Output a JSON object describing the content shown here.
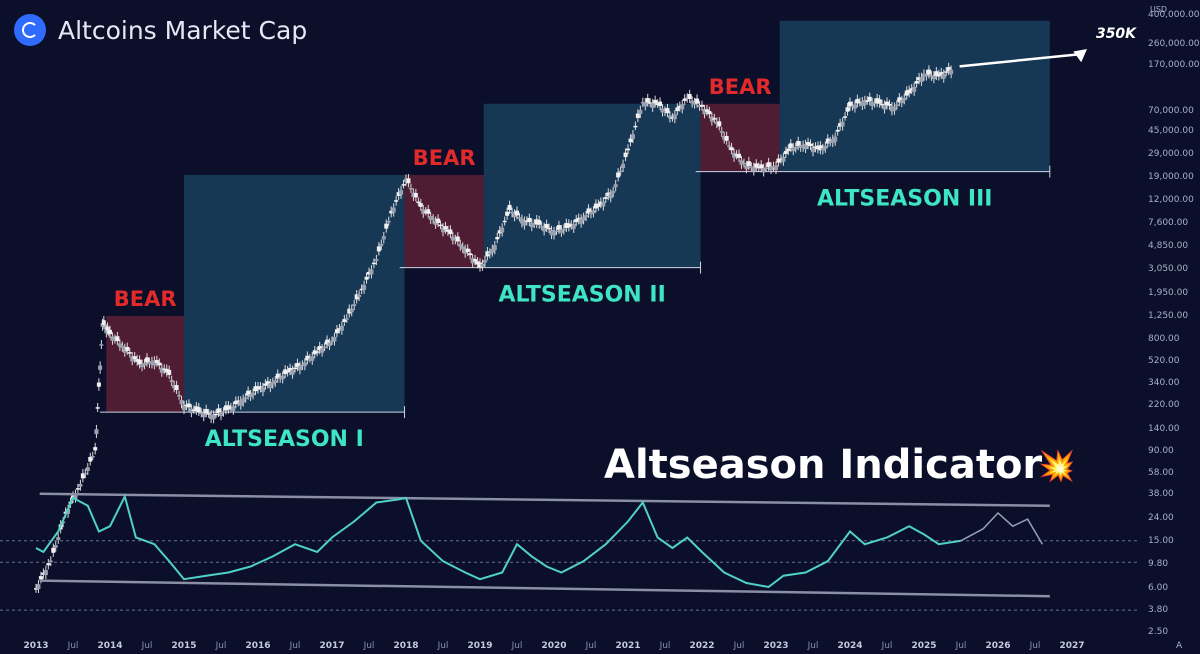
{
  "header": {
    "title": "Altcoins Market Cap",
    "logo_icon": "altcoin-logo-icon"
  },
  "currency_label": "USD",
  "target_label": "350K",
  "indicator_title": "Altseason Indicator",
  "indicator_emoji": "💥",
  "colors": {
    "background": "#0b0f2a",
    "bull_zone": "#1c4a68",
    "bear_zone": "#5a2036",
    "bear_text": "#e32a2a",
    "altseason_text": "#3ee5c4",
    "indicator_line": "#4fd1c5",
    "candle": "#dcdcdc",
    "trendline": "#8a8fa5"
  },
  "chart_data": [
    {
      "type": "candlestick",
      "title": "Altcoins Market Cap",
      "yscale": "log",
      "y_ticks": [
        "400,000.00",
        "260,000.00",
        "170,000.00",
        "70,000.00",
        "45,000.00",
        "29,000.00",
        "19,000.00",
        "12,000.00",
        "7,600.00",
        "4,850.00",
        "3,050.00",
        "1,950.00",
        "1,250.00",
        "800.00",
        "520.00",
        "340.00",
        "220.00",
        "140.00",
        "90.00",
        "58.00",
        "38.00",
        "24.00",
        "15.00",
        "9.80",
        "6.00",
        "3.80",
        "2.50"
      ],
      "x_ticks": [
        "2013",
        "Jul",
        "2014",
        "Jul",
        "2015",
        "Jul",
        "2016",
        "Jul",
        "2017",
        "Jul",
        "2018",
        "Jul",
        "2019",
        "Jul",
        "2020",
        "Jul",
        "2021",
        "Jul",
        "2022",
        "Jul",
        "2023",
        "Jul",
        "2024",
        "Jul",
        "2025",
        "Jul",
        "2026",
        "Jul",
        "2027"
      ],
      "trend_points": [
        [
          2013.0,
          9
        ],
        [
          2013.2,
          15
        ],
        [
          2013.4,
          35
        ],
        [
          2013.6,
          60
        ],
        [
          2013.8,
          110
        ],
        [
          2013.9,
          1100
        ],
        [
          2014.0,
          900
        ],
        [
          2014.2,
          700
        ],
        [
          2014.4,
          520
        ],
        [
          2014.6,
          560
        ],
        [
          2014.8,
          430
        ],
        [
          2015.0,
          250
        ],
        [
          2015.2,
          220
        ],
        [
          2015.4,
          210
        ],
        [
          2015.6,
          230
        ],
        [
          2015.8,
          280
        ],
        [
          2016.0,
          330
        ],
        [
          2016.2,
          380
        ],
        [
          2016.4,
          450
        ],
        [
          2016.6,
          520
        ],
        [
          2016.8,
          650
        ],
        [
          2017.0,
          800
        ],
        [
          2017.2,
          1200
        ],
        [
          2017.4,
          2000
        ],
        [
          2017.6,
          3500
        ],
        [
          2017.8,
          8000
        ],
        [
          2018.0,
          15000
        ],
        [
          2018.2,
          9000
        ],
        [
          2018.4,
          7000
        ],
        [
          2018.6,
          5500
        ],
        [
          2018.8,
          4200
        ],
        [
          2019.0,
          3000
        ],
        [
          2019.2,
          4500
        ],
        [
          2019.4,
          8500
        ],
        [
          2019.6,
          7000
        ],
        [
          2019.8,
          6500
        ],
        [
          2020.0,
          5800
        ],
        [
          2020.2,
          6200
        ],
        [
          2020.4,
          7500
        ],
        [
          2020.6,
          9000
        ],
        [
          2020.8,
          12000
        ],
        [
          2021.0,
          25000
        ],
        [
          2021.2,
          60000
        ],
        [
          2021.4,
          58000
        ],
        [
          2021.6,
          45000
        ],
        [
          2021.8,
          65000
        ],
        [
          2022.0,
          55000
        ],
        [
          2022.2,
          42000
        ],
        [
          2022.4,
          25000
        ],
        [
          2022.6,
          19000
        ],
        [
          2022.8,
          18000
        ],
        [
          2023.0,
          19000
        ],
        [
          2023.2,
          26000
        ],
        [
          2023.4,
          28000
        ],
        [
          2023.6,
          25000
        ],
        [
          2023.8,
          32000
        ],
        [
          2024.0,
          55000
        ],
        [
          2024.2,
          62000
        ],
        [
          2024.4,
          58000
        ],
        [
          2024.6,
          55000
        ],
        [
          2024.8,
          70000
        ],
        [
          2025.0,
          100000
        ],
        [
          2025.2,
          95000
        ],
        [
          2025.4,
          110000
        ]
      ],
      "projection_target": 350000
    },
    {
      "type": "line",
      "title": "Altseason Indicator",
      "yscale": "log",
      "series": [
        {
          "values": [
            [
              2013.0,
              13
            ],
            [
              2013.1,
              12
            ],
            [
              2013.3,
              18
            ],
            [
              2013.5,
              35
            ],
            [
              2013.7,
              30
            ],
            [
              2013.85,
              18
            ],
            [
              2014.0,
              20
            ],
            [
              2014.2,
              36
            ],
            [
              2014.35,
              16
            ],
            [
              2014.6,
              14
            ],
            [
              2014.8,
              10
            ],
            [
              2015.0,
              7
            ],
            [
              2015.3,
              7.5
            ],
            [
              2015.6,
              8
            ],
            [
              2015.9,
              9
            ],
            [
              2016.2,
              11
            ],
            [
              2016.5,
              14
            ],
            [
              2016.8,
              12
            ],
            [
              2017.0,
              16
            ],
            [
              2017.3,
              22
            ],
            [
              2017.6,
              32
            ],
            [
              2017.9,
              34
            ],
            [
              2018.0,
              35
            ],
            [
              2018.2,
              15
            ],
            [
              2018.5,
              10
            ],
            [
              2018.8,
              8
            ],
            [
              2019.0,
              7
            ],
            [
              2019.3,
              8
            ],
            [
              2019.5,
              14
            ],
            [
              2019.7,
              11
            ],
            [
              2019.9,
              9
            ],
            [
              2020.1,
              8
            ],
            [
              2020.4,
              10
            ],
            [
              2020.7,
              14
            ],
            [
              2021.0,
              22
            ],
            [
              2021.2,
              32
            ],
            [
              2021.4,
              16
            ],
            [
              2021.6,
              13
            ],
            [
              2021.8,
              16
            ],
            [
              2022.0,
              12
            ],
            [
              2022.3,
              8
            ],
            [
              2022.6,
              6.5
            ],
            [
              2022.9,
              6.0
            ],
            [
              2023.1,
              7.5
            ],
            [
              2023.4,
              8
            ],
            [
              2023.7,
              10
            ],
            [
              2024.0,
              18
            ],
            [
              2024.2,
              14
            ],
            [
              2024.5,
              16
            ],
            [
              2024.8,
              20
            ],
            [
              2025.0,
              17
            ],
            [
              2025.2,
              14
            ],
            [
              2025.5,
              15
            ]
          ]
        },
        {
          "values": [
            [
              2025.5,
              15
            ],
            [
              2025.8,
              19
            ],
            [
              2026.0,
              26
            ],
            [
              2026.2,
              20
            ],
            [
              2026.4,
              23
            ],
            [
              2026.6,
              14
            ]
          ],
          "projected": true
        }
      ]
    }
  ],
  "zones": [
    {
      "kind": "bear",
      "label": "BEAR",
      "x0": 2013.95,
      "x1": 2015.0,
      "y0": 220,
      "y1": 1250
    },
    {
      "kind": "bull",
      "label": "ALTSEASON I",
      "x0": 2015.0,
      "x1": 2017.98,
      "y0": 220,
      "y1": 16000
    },
    {
      "kind": "bear",
      "label": "BEAR",
      "x0": 2017.98,
      "x1": 2019.05,
      "y0": 3000,
      "y1": 16000
    },
    {
      "kind": "bull",
      "label": "ALTSEASON II",
      "x0": 2019.05,
      "x1": 2021.98,
      "y0": 3000,
      "y1": 58000
    },
    {
      "kind": "bear",
      "label": "BEAR",
      "x0": 2021.98,
      "x1": 2023.05,
      "y0": 17000,
      "y1": 58000
    },
    {
      "kind": "bull",
      "label": "ALTSEASON III",
      "x0": 2023.05,
      "x1": 2026.7,
      "y0": 17000,
      "y1": 260000
    }
  ]
}
